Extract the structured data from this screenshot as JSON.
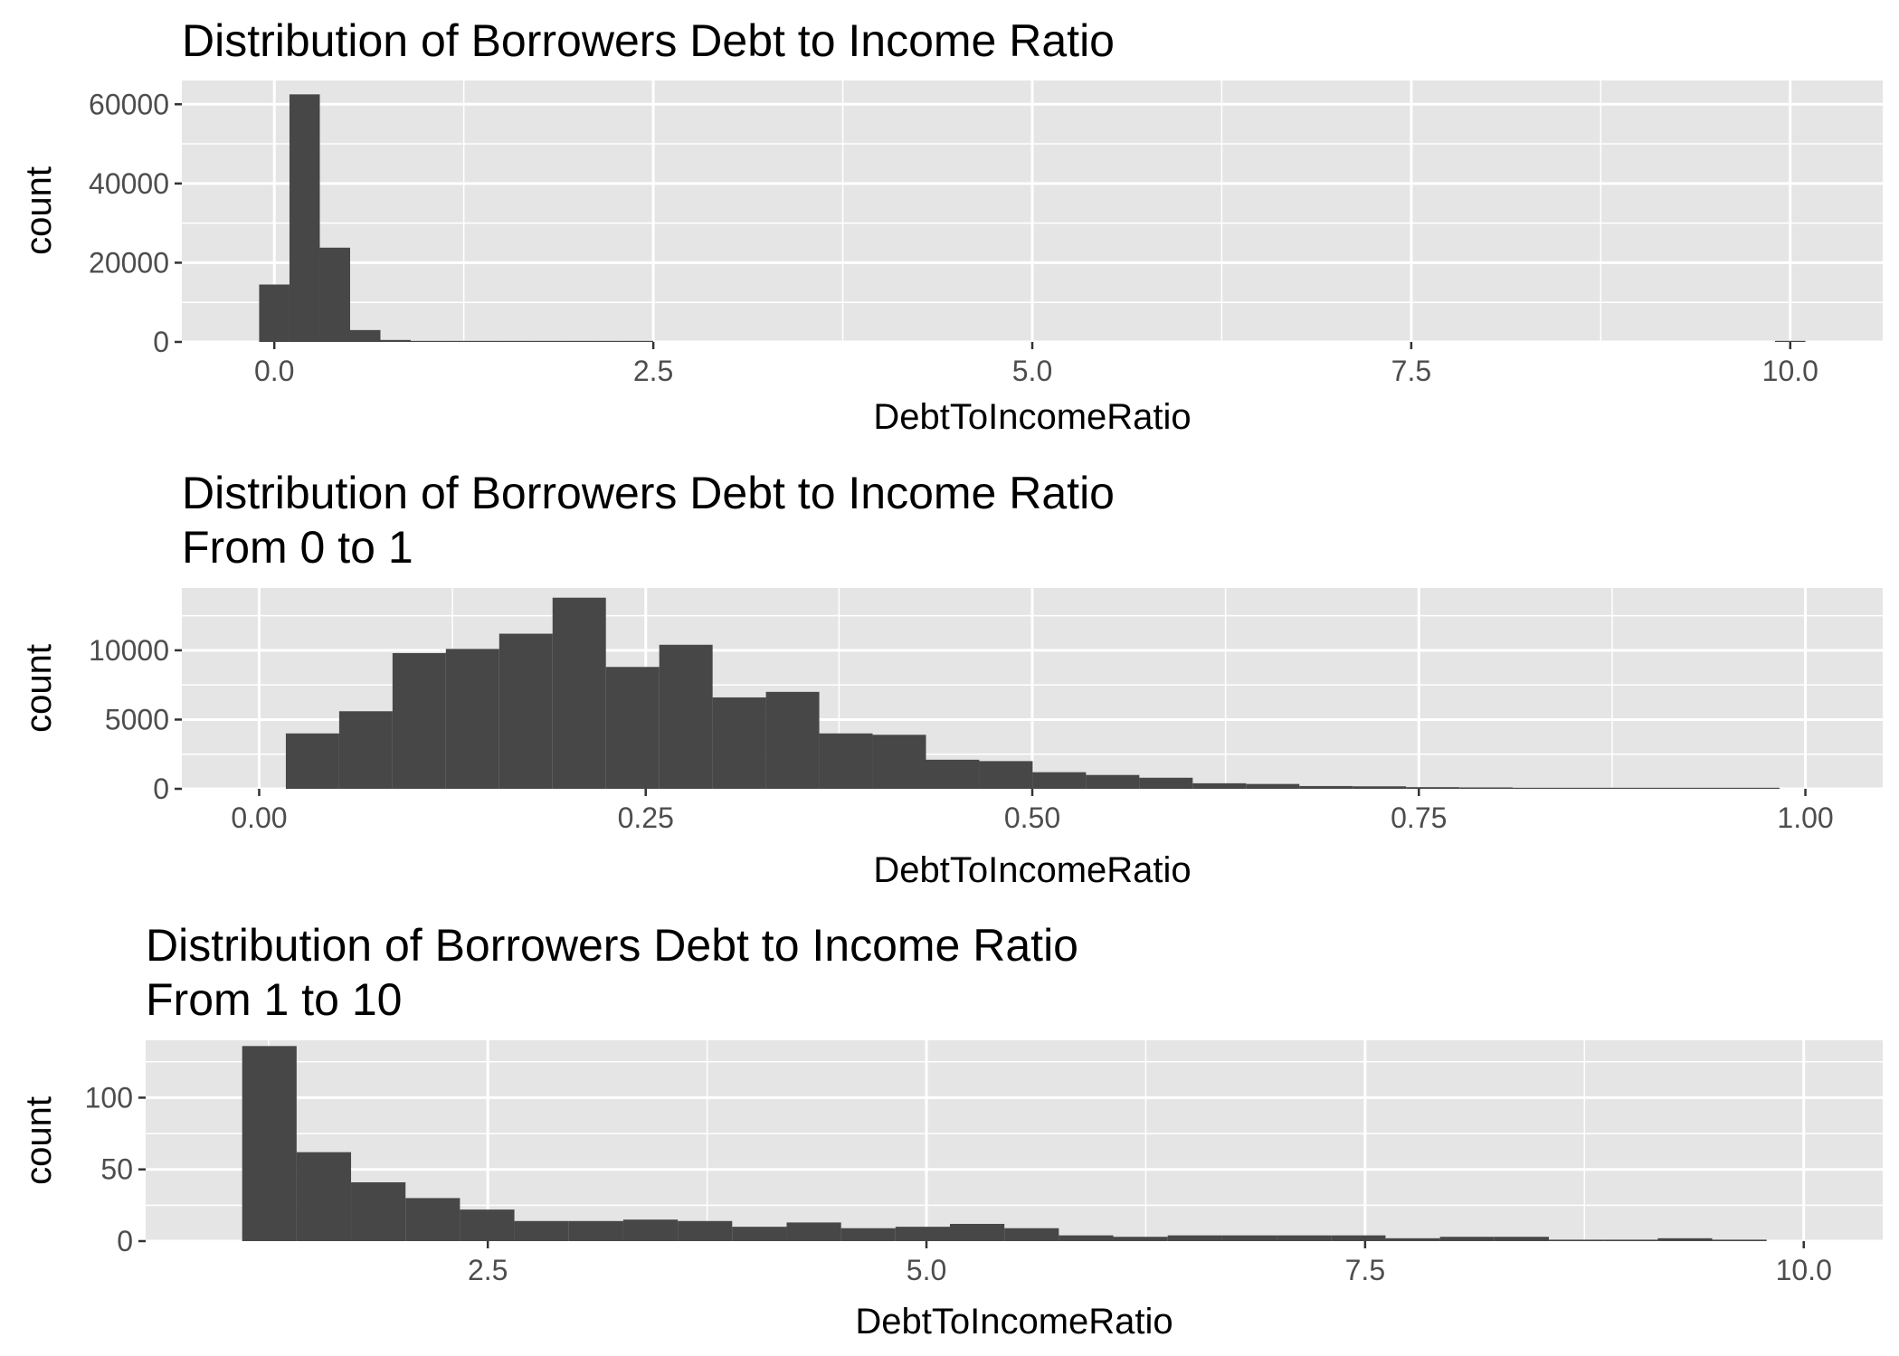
{
  "colors": {
    "panel_background": "#e5e5e5",
    "grid_major": "#ffffff",
    "bar_fill": "#474747",
    "tick_color": "#333333",
    "tick_label_color": "#4d4d4d",
    "text_color": "#000000"
  },
  "chart_data": [
    {
      "type": "histogram",
      "title_lines": [
        "Distribution of Borrowers Debt to Income Ratio"
      ],
      "xlabel": "DebtToIncomeRatio",
      "ylabel": "count",
      "xlim": [
        -0.61,
        10.61
      ],
      "ylim": [
        0,
        66000
      ],
      "xticks": [
        0,
        2.5,
        5,
        7.5,
        10
      ],
      "xtick_labels": [
        "0.0",
        "2.5",
        "5.0",
        "7.5",
        "10.0"
      ],
      "yticks": [
        0,
        20000,
        40000,
        60000
      ],
      "ytick_labels": [
        "0",
        "20000",
        "40000",
        "60000"
      ],
      "bin_width": 0.2,
      "bins": [
        {
          "x": 0.0,
          "count": 14500
        },
        {
          "x": 0.2,
          "count": 62500
        },
        {
          "x": 0.4,
          "count": 23800
        },
        {
          "x": 0.6,
          "count": 3000
        },
        {
          "x": 0.8,
          "count": 500
        },
        {
          "x": 1.0,
          "count": 200
        },
        {
          "x": 1.2,
          "count": 100
        },
        {
          "x": 1.4,
          "count": 60
        },
        {
          "x": 1.6,
          "count": 40
        },
        {
          "x": 1.8,
          "count": 30
        },
        {
          "x": 2.0,
          "count": 20
        },
        {
          "x": 2.2,
          "count": 15
        },
        {
          "x": 2.4,
          "count": 10
        },
        {
          "x": 10.0,
          "count": 270
        }
      ]
    },
    {
      "type": "histogram",
      "title_lines": [
        "Distribution of Borrowers Debt to Income Ratio",
        "From 0 to 1"
      ],
      "xlabel": "DebtToIncomeRatio",
      "ylabel": "count",
      "xlim": [
        -0.05,
        1.05
      ],
      "ylim": [
        0,
        14500
      ],
      "xticks": [
        0,
        0.25,
        0.5,
        0.75,
        1.0
      ],
      "xtick_labels": [
        "0.00",
        "0.25",
        "0.50",
        "0.75",
        "1.00"
      ],
      "yticks": [
        0,
        5000,
        10000
      ],
      "ytick_labels": [
        "0",
        "5000",
        "10000"
      ],
      "bin_width": 0.0345,
      "bins": [
        {
          "x": 0.0345,
          "count": 4000
        },
        {
          "x": 0.069,
          "count": 5600
        },
        {
          "x": 0.1035,
          "count": 9800
        },
        {
          "x": 0.138,
          "count": 10100
        },
        {
          "x": 0.1725,
          "count": 11200
        },
        {
          "x": 0.207,
          "count": 13800
        },
        {
          "x": 0.2415,
          "count": 8800
        },
        {
          "x": 0.276,
          "count": 10400
        },
        {
          "x": 0.3105,
          "count": 6600
        },
        {
          "x": 0.345,
          "count": 7000
        },
        {
          "x": 0.3795,
          "count": 4000
        },
        {
          "x": 0.414,
          "count": 3900
        },
        {
          "x": 0.4485,
          "count": 2100
        },
        {
          "x": 0.483,
          "count": 2000
        },
        {
          "x": 0.5175,
          "count": 1200
        },
        {
          "x": 0.552,
          "count": 1000
        },
        {
          "x": 0.5865,
          "count": 800
        },
        {
          "x": 0.621,
          "count": 400
        },
        {
          "x": 0.6555,
          "count": 350
        },
        {
          "x": 0.69,
          "count": 200
        },
        {
          "x": 0.7245,
          "count": 180
        },
        {
          "x": 0.759,
          "count": 120
        },
        {
          "x": 0.7935,
          "count": 100
        },
        {
          "x": 0.828,
          "count": 70
        },
        {
          "x": 0.8625,
          "count": 50
        },
        {
          "x": 0.897,
          "count": 40
        },
        {
          "x": 0.9315,
          "count": 30
        },
        {
          "x": 0.966,
          "count": 25
        }
      ]
    },
    {
      "type": "histogram",
      "title_lines": [
        "Distribution of Borrowers Debt to Income Ratio",
        "From 1 to 10"
      ],
      "xlabel": "DebtToIncomeRatio",
      "ylabel": "count",
      "xlim": [
        0.55,
        10.45
      ],
      "ylim": [
        0,
        140
      ],
      "xticks": [
        2.5,
        5,
        7.5,
        10
      ],
      "xtick_labels": [
        "2.5",
        "5.0",
        "7.5",
        "10.0"
      ],
      "yticks": [
        0,
        50,
        100
      ],
      "ytick_labels": [
        "0",
        "50",
        "100"
      ],
      "bin_width": 0.3103,
      "bins": [
        {
          "x": 1.2552,
          "count": 136
        },
        {
          "x": 1.5655,
          "count": 62
        },
        {
          "x": 1.8758,
          "count": 41
        },
        {
          "x": 2.1861,
          "count": 30
        },
        {
          "x": 2.4964,
          "count": 22
        },
        {
          "x": 2.8067,
          "count": 14
        },
        {
          "x": 3.117,
          "count": 14
        },
        {
          "x": 3.4273,
          "count": 15
        },
        {
          "x": 3.7376,
          "count": 14
        },
        {
          "x": 4.0479,
          "count": 10
        },
        {
          "x": 4.3582,
          "count": 13
        },
        {
          "x": 4.6685,
          "count": 9
        },
        {
          "x": 4.9788,
          "count": 10
        },
        {
          "x": 5.2891,
          "count": 12
        },
        {
          "x": 5.5994,
          "count": 9
        },
        {
          "x": 5.9097,
          "count": 4
        },
        {
          "x": 6.22,
          "count": 3
        },
        {
          "x": 6.5303,
          "count": 4
        },
        {
          "x": 6.8406,
          "count": 4
        },
        {
          "x": 7.1509,
          "count": 4
        },
        {
          "x": 7.4612,
          "count": 4
        },
        {
          "x": 7.7715,
          "count": 2
        },
        {
          "x": 8.0818,
          "count": 3
        },
        {
          "x": 8.3921,
          "count": 3
        },
        {
          "x": 8.7024,
          "count": 1
        },
        {
          "x": 9.0127,
          "count": 1
        },
        {
          "x": 9.323,
          "count": 2
        },
        {
          "x": 9.6333,
          "count": 1
        }
      ]
    }
  ]
}
